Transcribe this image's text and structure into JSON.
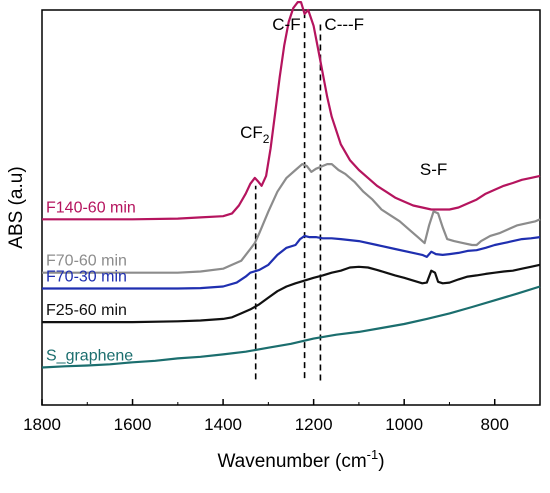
{
  "chart_data": {
    "type": "line",
    "title": "",
    "xlabel": "Wavenumber",
    "xlabel_unit": "(cm",
    "xlabel_sup": "-1",
    "xlabel_close": ")",
    "ylabel": "ABS (a.u)",
    "xlim": [
      1800,
      700
    ],
    "x_reversed": true,
    "ylim": [
      0,
      10
    ],
    "y_ticks_shown": false,
    "grid": false,
    "x_ticks": [
      1800,
      1600,
      1400,
      1200,
      1000,
      800
    ],
    "annotations": [
      {
        "id": "cf2",
        "text": "CF",
        "sub": "2",
        "x": 1330
      },
      {
        "id": "cf",
        "text": "C-F",
        "x": 1220
      },
      {
        "id": "cdf",
        "text": "C---F",
        "x": 1185
      },
      {
        "id": "sf",
        "text": "S-F",
        "x": 935
      }
    ],
    "reference_lines": [
      {
        "x": 1328,
        "from": 0.65,
        "to": 5.55
      },
      {
        "x": 1220,
        "from": 0.68,
        "to": 9.95
      },
      {
        "x": 1185,
        "from": 0.62,
        "to": 9.7
      }
    ],
    "series": [
      {
        "name": "F140-60 min",
        "color": "#b5145e",
        "points": [
          [
            1800,
            4.7
          ],
          [
            1700,
            4.7
          ],
          [
            1600,
            4.7
          ],
          [
            1500,
            4.72
          ],
          [
            1450,
            4.75
          ],
          [
            1400,
            4.78
          ],
          [
            1380,
            4.85
          ],
          [
            1365,
            5.05
          ],
          [
            1350,
            5.35
          ],
          [
            1340,
            5.6
          ],
          [
            1330,
            5.75
          ],
          [
            1322,
            5.65
          ],
          [
            1315,
            5.55
          ],
          [
            1305,
            5.8
          ],
          [
            1295,
            6.5
          ],
          [
            1285,
            7.4
          ],
          [
            1275,
            8.3
          ],
          [
            1265,
            9.1
          ],
          [
            1255,
            9.7
          ],
          [
            1245,
            10.05
          ],
          [
            1235,
            10.2
          ],
          [
            1228,
            10.2
          ],
          [
            1220,
            9.9
          ],
          [
            1212,
            10.0
          ],
          [
            1200,
            9.6
          ],
          [
            1190,
            9.0
          ],
          [
            1180,
            8.4
          ],
          [
            1170,
            7.8
          ],
          [
            1160,
            7.3
          ],
          [
            1140,
            6.6
          ],
          [
            1120,
            6.2
          ],
          [
            1100,
            5.95
          ],
          [
            1080,
            5.75
          ],
          [
            1060,
            5.55
          ],
          [
            1040,
            5.4
          ],
          [
            1020,
            5.25
          ],
          [
            1000,
            5.15
          ],
          [
            980,
            5.05
          ],
          [
            960,
            5.0
          ],
          [
            940,
            4.95
          ],
          [
            920,
            4.95
          ],
          [
            900,
            4.95
          ],
          [
            880,
            5.0
          ],
          [
            860,
            5.1
          ],
          [
            840,
            5.2
          ],
          [
            820,
            5.35
          ],
          [
            800,
            5.45
          ],
          [
            780,
            5.55
          ],
          [
            760,
            5.62
          ],
          [
            740,
            5.7
          ],
          [
            720,
            5.75
          ],
          [
            700,
            5.8
          ]
        ]
      },
      {
        "name": "F70-60 min",
        "color": "#8c8c8c",
        "points": [
          [
            1800,
            3.35
          ],
          [
            1700,
            3.35
          ],
          [
            1600,
            3.35
          ],
          [
            1500,
            3.35
          ],
          [
            1450,
            3.38
          ],
          [
            1400,
            3.45
          ],
          [
            1380,
            3.55
          ],
          [
            1360,
            3.65
          ],
          [
            1340,
            3.95
          ],
          [
            1330,
            4.1
          ],
          [
            1320,
            4.35
          ],
          [
            1300,
            4.9
          ],
          [
            1280,
            5.4
          ],
          [
            1260,
            5.75
          ],
          [
            1240,
            5.95
          ],
          [
            1225,
            6.1
          ],
          [
            1215,
            6.05
          ],
          [
            1205,
            5.9
          ],
          [
            1195,
            5.98
          ],
          [
            1180,
            6.05
          ],
          [
            1170,
            6.1
          ],
          [
            1160,
            6.1
          ],
          [
            1145,
            5.95
          ],
          [
            1130,
            5.85
          ],
          [
            1110,
            5.65
          ],
          [
            1090,
            5.4
          ],
          [
            1070,
            5.2
          ],
          [
            1050,
            4.95
          ],
          [
            1030,
            4.8
          ],
          [
            1010,
            4.65
          ],
          [
            990,
            4.45
          ],
          [
            970,
            4.25
          ],
          [
            955,
            4.1
          ],
          [
            945,
            4.55
          ],
          [
            935,
            4.9
          ],
          [
            925,
            4.85
          ],
          [
            915,
            4.5
          ],
          [
            905,
            4.2
          ],
          [
            890,
            4.15
          ],
          [
            870,
            4.1
          ],
          [
            850,
            4.05
          ],
          [
            840,
            4.05
          ],
          [
            830,
            4.15
          ],
          [
            810,
            4.28
          ],
          [
            790,
            4.35
          ],
          [
            770,
            4.45
          ],
          [
            750,
            4.55
          ],
          [
            730,
            4.6
          ],
          [
            710,
            4.65
          ],
          [
            700,
            4.7
          ]
        ]
      },
      {
        "name": "F70-30 min",
        "color": "#1f2fb0",
        "points": [
          [
            1800,
            2.95
          ],
          [
            1700,
            2.95
          ],
          [
            1600,
            2.95
          ],
          [
            1500,
            2.95
          ],
          [
            1450,
            2.96
          ],
          [
            1400,
            3.0
          ],
          [
            1370,
            3.1
          ],
          [
            1350,
            3.25
          ],
          [
            1340,
            3.35
          ],
          [
            1320,
            3.42
          ],
          [
            1300,
            3.55
          ],
          [
            1280,
            3.8
          ],
          [
            1260,
            3.98
          ],
          [
            1240,
            4.05
          ],
          [
            1230,
            4.2
          ],
          [
            1220,
            4.28
          ],
          [
            1210,
            4.25
          ],
          [
            1195,
            4.25
          ],
          [
            1180,
            4.22
          ],
          [
            1160,
            4.22
          ],
          [
            1140,
            4.2
          ],
          [
            1100,
            4.15
          ],
          [
            1060,
            4.05
          ],
          [
            1020,
            3.95
          ],
          [
            980,
            3.85
          ],
          [
            960,
            3.8
          ],
          [
            950,
            3.75
          ],
          [
            940,
            3.88
          ],
          [
            930,
            3.82
          ],
          [
            915,
            3.8
          ],
          [
            900,
            3.82
          ],
          [
            880,
            3.85
          ],
          [
            860,
            3.9
          ],
          [
            840,
            3.92
          ],
          [
            820,
            3.98
          ],
          [
            800,
            4.05
          ],
          [
            780,
            4.1
          ],
          [
            760,
            4.15
          ],
          [
            740,
            4.2
          ],
          [
            720,
            4.22
          ],
          [
            700,
            4.25
          ]
        ]
      },
      {
        "name": "F25-60 min",
        "color": "#111111",
        "points": [
          [
            1800,
            2.1
          ],
          [
            1700,
            2.1
          ],
          [
            1600,
            2.1
          ],
          [
            1500,
            2.12
          ],
          [
            1450,
            2.14
          ],
          [
            1400,
            2.18
          ],
          [
            1380,
            2.22
          ],
          [
            1360,
            2.32
          ],
          [
            1340,
            2.42
          ],
          [
            1320,
            2.55
          ],
          [
            1300,
            2.72
          ],
          [
            1280,
            2.88
          ],
          [
            1260,
            3.0
          ],
          [
            1240,
            3.08
          ],
          [
            1220,
            3.15
          ],
          [
            1200,
            3.22
          ],
          [
            1180,
            3.28
          ],
          [
            1160,
            3.35
          ],
          [
            1140,
            3.4
          ],
          [
            1120,
            3.48
          ],
          [
            1100,
            3.5
          ],
          [
            1080,
            3.48
          ],
          [
            1060,
            3.42
          ],
          [
            1040,
            3.35
          ],
          [
            1020,
            3.28
          ],
          [
            1000,
            3.22
          ],
          [
            980,
            3.15
          ],
          [
            960,
            3.08
          ],
          [
            950,
            3.1
          ],
          [
            940,
            3.4
          ],
          [
            932,
            3.35
          ],
          [
            925,
            3.12
          ],
          [
            915,
            3.08
          ],
          [
            900,
            3.1
          ],
          [
            880,
            3.18
          ],
          [
            860,
            3.25
          ],
          [
            840,
            3.28
          ],
          [
            820,
            3.32
          ],
          [
            800,
            3.35
          ],
          [
            780,
            3.38
          ],
          [
            760,
            3.4
          ],
          [
            740,
            3.45
          ],
          [
            720,
            3.5
          ],
          [
            700,
            3.55
          ]
        ]
      },
      {
        "name": "S_graphene",
        "color": "#1b6e6e",
        "points": [
          [
            1800,
            0.95
          ],
          [
            1750,
            0.98
          ],
          [
            1700,
            1.0
          ],
          [
            1650,
            1.03
          ],
          [
            1600,
            1.08
          ],
          [
            1550,
            1.12
          ],
          [
            1500,
            1.18
          ],
          [
            1450,
            1.22
          ],
          [
            1400,
            1.28
          ],
          [
            1350,
            1.35
          ],
          [
            1300,
            1.45
          ],
          [
            1250,
            1.55
          ],
          [
            1200,
            1.68
          ],
          [
            1150,
            1.78
          ],
          [
            1100,
            1.85
          ],
          [
            1050,
            1.95
          ],
          [
            1000,
            2.05
          ],
          [
            950,
            2.18
          ],
          [
            900,
            2.32
          ],
          [
            850,
            2.48
          ],
          [
            800,
            2.65
          ],
          [
            750,
            2.82
          ],
          [
            700,
            3.0
          ]
        ]
      }
    ],
    "legend_placement": "left, inline labels beside each trace"
  }
}
